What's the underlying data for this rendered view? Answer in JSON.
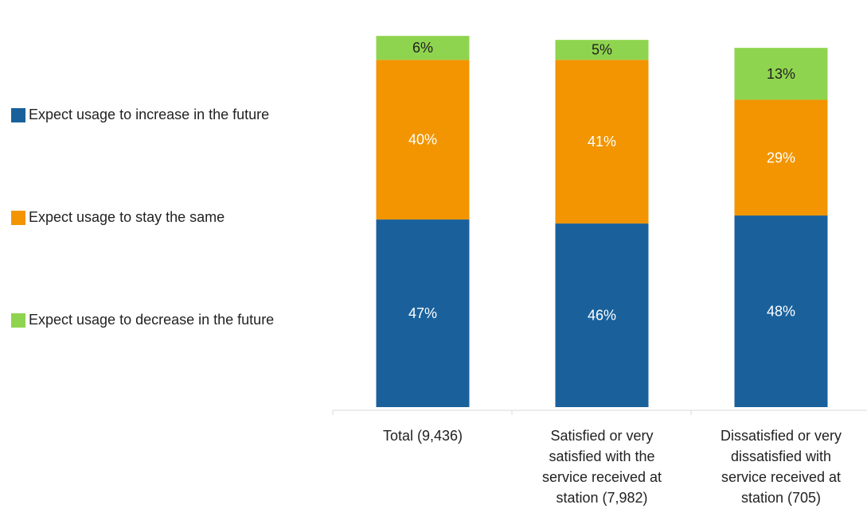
{
  "chart_data": {
    "type": "bar",
    "stacked": true,
    "categories": [
      "Total (9,436)",
      "Satisfied or very satisfied with the service received at station (7,982)",
      "Dissatisfied or very dissatisfied with service received at station (705)"
    ],
    "category_lines": [
      [
        "Total (9,436)"
      ],
      [
        "Satisfied or very",
        "satisfied with the",
        "service received at",
        "station (7,982)"
      ],
      [
        "Dissatisfied or very",
        "dissatisfied with",
        "service received at",
        "station (705)"
      ]
    ],
    "series": [
      {
        "name": "Expect usage to increase in the future",
        "color": "#1a619c",
        "values": [
          47,
          46,
          48
        ],
        "labels": [
          "47%",
          "46%",
          "48%"
        ],
        "label_color": "#ffffff"
      },
      {
        "name": "Expect usage to stay the same",
        "color": "#f29500",
        "values": [
          40,
          41,
          29
        ],
        "labels": [
          "40%",
          "41%",
          "29%"
        ],
        "label_color": "#ffffff"
      },
      {
        "name": "Expect usage to decrease in the future",
        "color": "#8fd44e",
        "values": [
          6,
          5,
          13
        ],
        "labels": [
          "6%",
          "5%",
          "13%"
        ],
        "label_color": "#222222"
      }
    ],
    "legend_position": "left",
    "legend_order": [
      0,
      1,
      2
    ],
    "grid": false
  }
}
